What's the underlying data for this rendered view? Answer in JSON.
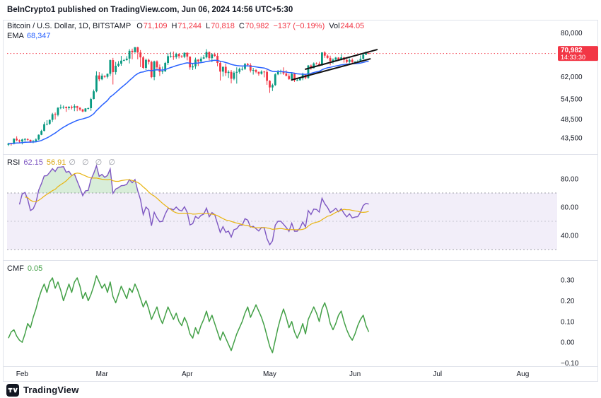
{
  "topbar": {
    "text": "BeInCrypto1 published on TradingView.com, Jun 06, 2024 14:56 UTC+5:30"
  },
  "footer": {
    "brand": "TradingView"
  },
  "legend": {
    "symbol": "Bitcoin / U.S. Dollar, 1D, BITSTAMP",
    "ohlc": [
      {
        "k": "O",
        "v": "71,109"
      },
      {
        "k": "H",
        "v": "71,244"
      },
      {
        "k": "L",
        "v": "70,818"
      },
      {
        "k": "C",
        "v": "70,982"
      }
    ],
    "change": "−137 (−0.19%)",
    "vol_label": "Vol",
    "vol_value": "244.05",
    "ema_label": "EMA",
    "ema_value": "68,347",
    "rsi_label": "RSI",
    "rsi_value": "62.15",
    "rsi_ma_value": "56.91",
    "rsi_hidden": "∅ ∅ ∅ ∅",
    "cmf_label": "CMF",
    "cmf_value": "0.05"
  },
  "colors": {
    "up": "#089981",
    "down": "#f23645",
    "ema": "#2962ff",
    "rsi": "#7e57c2",
    "rsi_ma": "#e8b410",
    "rsi_band": "rgba(126,87,194,0.10)",
    "rsi_ob": "rgba(76,175,80,0.22)",
    "cmf": "#43a047",
    "level": "#787b86",
    "trend": "#111111",
    "text": "#131722",
    "border": "#e0e3eb",
    "badge_text": "#ffffff"
  },
  "x_axis": {
    "slots": 200,
    "month_labels": [
      {
        "label": "Feb",
        "slot": 5
      },
      {
        "label": "Mar",
        "slot": 34
      },
      {
        "label": "Apr",
        "slot": 65
      },
      {
        "label": "May",
        "slot": 95
      },
      {
        "label": "Jun",
        "slot": 126
      },
      {
        "label": "Jul",
        "slot": 156
      },
      {
        "label": "Aug",
        "slot": 187
      }
    ]
  },
  "chart_data": [
    {
      "id": "price",
      "type": "candlestick",
      "title": "Bitcoin / U.S. Dollar, 1D, BITSTAMP",
      "scale": "log",
      "units": "USD, ohlc values in thousands",
      "x_start_date": "2024-01-27",
      "ylim": [
        39600,
        86300
      ],
      "y_ticks": [
        80000,
        62000,
        54500,
        48500,
        43500
      ],
      "y_tick_labels": [
        "80,000",
        "62,000",
        "54,500",
        "48,500",
        "43,500"
      ],
      "last": {
        "price": 70982,
        "label": "70,982",
        "countdown": "14:33:30"
      },
      "ema_period": 25,
      "trendlines": [
        {
          "x1": 108,
          "p1": 64800,
          "x2": 134,
          "p2": 72600
        },
        {
          "x1": 103,
          "p1": 60900,
          "x2": 131.5,
          "p2": 68800
        }
      ],
      "ohlc_k": [
        [
          41.8,
          42.3,
          41.5,
          42.1
        ],
        [
          42.1,
          42.3,
          41.6,
          42.0
        ],
        [
          42.0,
          43.4,
          41.9,
          43.3
        ],
        [
          43.3,
          43.9,
          42.7,
          42.9
        ],
        [
          42.9,
          43.1,
          42.2,
          42.6
        ],
        [
          42.6,
          43.3,
          41.9,
          43.1
        ],
        [
          43.1,
          43.5,
          42.6,
          43.2
        ],
        [
          43.2,
          43.4,
          42.8,
          43.0
        ],
        [
          43.0,
          43.1,
          42.3,
          42.6
        ],
        [
          42.6,
          43.0,
          42.2,
          42.7
        ],
        [
          42.7,
          43.4,
          42.5,
          43.1
        ],
        [
          43.1,
          44.4,
          42.9,
          44.3
        ],
        [
          44.3,
          45.6,
          44.2,
          45.3
        ],
        [
          45.3,
          47.7,
          45.2,
          47.1
        ],
        [
          47.1,
          48.2,
          46.8,
          47.2
        ],
        [
          47.2,
          48.4,
          46.9,
          48.3
        ],
        [
          48.3,
          50.3,
          47.7,
          49.9
        ],
        [
          49.9,
          50.4,
          48.4,
          49.7
        ],
        [
          49.7,
          52.0,
          49.3,
          51.8
        ],
        [
          51.8,
          52.8,
          51.4,
          51.9
        ],
        [
          51.9,
          52.5,
          51.5,
          52.1
        ],
        [
          52.1,
          52.2,
          50.6,
          51.7
        ],
        [
          51.7,
          52.3,
          51.2,
          52.1
        ],
        [
          52.1,
          52.5,
          51.3,
          51.8
        ],
        [
          51.8,
          52.9,
          50.8,
          52.3
        ],
        [
          52.3,
          52.4,
          50.8,
          51.8
        ],
        [
          51.8,
          52.0,
          50.9,
          51.3
        ],
        [
          51.3,
          51.5,
          50.5,
          50.7
        ],
        [
          50.7,
          51.7,
          50.6,
          51.6
        ],
        [
          51.6,
          51.9,
          51.3,
          51.7
        ],
        [
          51.7,
          54.9,
          50.9,
          54.5
        ],
        [
          54.5,
          57.6,
          54.4,
          57.0
        ],
        [
          57.0,
          64.0,
          56.7,
          62.5
        ],
        [
          62.5,
          63.7,
          60.4,
          61.1
        ],
        [
          61.1,
          63.2,
          60.8,
          62.4
        ],
        [
          62.4,
          62.5,
          61.6,
          62.0
        ],
        [
          62.0,
          63.2,
          61.4,
          63.1
        ],
        [
          63.1,
          68.5,
          62.3,
          68.3
        ],
        [
          68.3,
          69.2,
          59.3,
          63.7
        ],
        [
          63.7,
          67.6,
          62.8,
          66.1
        ],
        [
          66.1,
          67.9,
          65.6,
          66.9
        ],
        [
          66.9,
          70.0,
          66.1,
          68.1
        ],
        [
          68.1,
          68.8,
          67.9,
          68.3
        ],
        [
          68.3,
          69.9,
          68.1,
          68.9
        ],
        [
          68.9,
          72.8,
          67.0,
          72.1
        ],
        [
          72.1,
          73.0,
          68.6,
          71.5
        ],
        [
          71.5,
          73.7,
          71.3,
          73.6
        ],
        [
          73.6,
          73.8,
          68.6,
          71.4
        ],
        [
          71.4,
          72.4,
          65.6,
          69.4
        ],
        [
          69.4,
          70.0,
          64.9,
          65.3
        ],
        [
          65.3,
          68.9,
          64.5,
          68.4
        ],
        [
          68.4,
          68.9,
          66.6,
          67.6
        ],
        [
          67.6,
          68.1,
          61.5,
          61.9
        ],
        [
          61.9,
          68.1,
          60.8,
          67.8
        ],
        [
          67.8,
          68.2,
          64.6,
          65.5
        ],
        [
          65.5,
          66.6,
          62.3,
          63.8
        ],
        [
          63.8,
          65.8,
          63.0,
          64.0
        ],
        [
          64.0,
          67.6,
          63.8,
          67.2
        ],
        [
          67.2,
          71.1,
          66.4,
          69.9
        ],
        [
          69.9,
          71.6,
          69.3,
          69.9
        ],
        [
          69.9,
          71.8,
          68.4,
          69.5
        ],
        [
          69.5,
          71.3,
          68.8,
          70.8
        ],
        [
          70.8,
          71.0,
          69.0,
          69.9
        ],
        [
          69.9,
          70.3,
          69.2,
          69.6
        ],
        [
          69.6,
          71.4,
          69.1,
          71.3
        ],
        [
          71.3,
          71.4,
          68.2,
          69.7
        ],
        [
          69.7,
          69.8,
          64.6,
          65.5
        ],
        [
          65.5,
          66.9,
          64.5,
          65.9
        ],
        [
          65.9,
          69.3,
          64.9,
          68.5
        ],
        [
          68.5,
          68.7,
          66.0,
          67.8
        ],
        [
          67.8,
          69.7,
          67.5,
          68.9
        ],
        [
          68.9,
          70.3,
          68.7,
          69.4
        ],
        [
          69.4,
          72.8,
          69.0,
          71.6
        ],
        [
          71.6,
          71.8,
          68.2,
          69.1
        ],
        [
          69.1,
          71.1,
          67.5,
          70.6
        ],
        [
          70.6,
          71.3,
          69.6,
          70.0
        ],
        [
          70.0,
          71.2,
          65.9,
          67.2
        ],
        [
          67.2,
          67.9,
          60.7,
          63.9
        ],
        [
          63.9,
          65.8,
          62.1,
          65.7
        ],
        [
          65.7,
          66.9,
          62.3,
          63.4
        ],
        [
          63.4,
          64.4,
          61.6,
          63.8
        ],
        [
          63.8,
          64.5,
          59.7,
          61.3
        ],
        [
          61.3,
          64.1,
          60.8,
          63.5
        ],
        [
          63.5,
          65.5,
          59.6,
          63.8
        ],
        [
          63.8,
          65.4,
          63.1,
          64.9
        ],
        [
          64.9,
          65.7,
          64.3,
          64.9
        ],
        [
          64.9,
          67.2,
          64.5,
          66.8
        ],
        [
          66.8,
          67.2,
          65.8,
          66.4
        ],
        [
          66.4,
          67.1,
          63.6,
          64.3
        ],
        [
          64.3,
          65.3,
          62.8,
          64.5
        ],
        [
          64.5,
          64.8,
          63.3,
          63.8
        ],
        [
          63.8,
          63.9,
          62.4,
          63.1
        ],
        [
          63.1,
          64.4,
          62.8,
          63.9
        ],
        [
          63.9,
          64.2,
          61.8,
          63.8
        ],
        [
          63.8,
          64.7,
          59.2,
          60.6
        ],
        [
          60.6,
          60.8,
          56.5,
          58.3
        ],
        [
          58.3,
          59.6,
          57.1,
          59.1
        ],
        [
          59.1,
          63.3,
          58.8,
          62.9
        ],
        [
          62.9,
          64.5,
          62.6,
          64.0
        ],
        [
          64.0,
          64.6,
          62.9,
          64.0
        ],
        [
          64.0,
          65.5,
          62.7,
          63.2
        ],
        [
          63.2,
          64.4,
          62.3,
          62.3
        ],
        [
          62.3,
          63.0,
          60.9,
          61.2
        ],
        [
          61.2,
          63.4,
          60.6,
          63.1
        ],
        [
          63.1,
          63.5,
          60.2,
          60.8
        ],
        [
          60.8,
          61.5,
          60.5,
          60.8
        ],
        [
          60.8,
          61.9,
          60.6,
          61.5
        ],
        [
          61.5,
          63.5,
          60.8,
          62.9
        ],
        [
          62.9,
          63.1,
          61.1,
          61.6
        ],
        [
          61.6,
          66.4,
          61.3,
          66.2
        ],
        [
          66.2,
          66.6,
          64.6,
          65.2
        ],
        [
          65.2,
          67.4,
          65.1,
          67.0
        ],
        [
          67.0,
          67.4,
          66.6,
          66.9
        ],
        [
          66.9,
          67.7,
          65.9,
          66.3
        ],
        [
          66.3,
          71.5,
          66.1,
          71.4
        ],
        [
          71.4,
          71.9,
          69.2,
          70.1
        ],
        [
          70.1,
          70.6,
          68.8,
          69.2
        ],
        [
          69.2,
          70.1,
          66.3,
          67.9
        ],
        [
          67.9,
          69.0,
          66.9,
          68.5
        ],
        [
          68.5,
          69.6,
          68.2,
          69.3
        ],
        [
          69.3,
          69.5,
          68.2,
          68.5
        ],
        [
          68.5,
          70.7,
          68.2,
          69.4
        ],
        [
          69.4,
          69.6,
          67.3,
          68.4
        ],
        [
          68.4,
          68.7,
          67.1,
          67.6
        ],
        [
          67.6,
          69.0,
          67.1,
          68.4
        ],
        [
          68.4,
          69.0,
          66.7,
          67.5
        ],
        [
          67.5,
          67.9,
          67.3,
          67.7
        ],
        [
          67.7,
          68.4,
          67.2,
          67.8
        ],
        [
          67.8,
          70.2,
          67.6,
          68.8
        ],
        [
          68.8,
          71.0,
          68.6,
          70.5
        ],
        [
          70.5,
          71.8,
          70.3,
          71.1
        ],
        [
          71.1,
          71.24,
          70.82,
          70.98
        ]
      ]
    },
    {
      "id": "rsi",
      "type": "line",
      "name": "RSI",
      "period": 14,
      "ma_period": 14,
      "levels": [
        70,
        50,
        30
      ],
      "band": [
        30,
        70
      ],
      "ylim": [
        22.5,
        97.5
      ],
      "y_ticks": [
        80,
        60,
        40
      ],
      "y_tick_labels": [
        "80.00",
        "60.00",
        "40.00"
      ],
      "last_value": 62.15,
      "ma_last_value": 56.91
    },
    {
      "id": "cmf",
      "type": "line",
      "name": "CMF",
      "ylim": [
        -0.115,
        0.395
      ],
      "y_ticks": [
        0.3,
        0.2,
        0.1,
        0.0,
        -0.1
      ],
      "y_tick_labels": [
        "0.30",
        "0.20",
        "0.10",
        "0.00",
        "−0.10"
      ],
      "last_value": 0.05,
      "values": [
        0.02,
        0.05,
        0.06,
        0.03,
        0.01,
        0.0,
        0.04,
        0.09,
        0.07,
        0.12,
        0.16,
        0.21,
        0.25,
        0.28,
        0.24,
        0.29,
        0.31,
        0.26,
        0.29,
        0.25,
        0.2,
        0.24,
        0.28,
        0.24,
        0.29,
        0.31,
        0.27,
        0.21,
        0.24,
        0.2,
        0.23,
        0.27,
        0.32,
        0.29,
        0.26,
        0.28,
        0.24,
        0.29,
        0.22,
        0.19,
        0.23,
        0.27,
        0.24,
        0.21,
        0.26,
        0.24,
        0.28,
        0.25,
        0.21,
        0.17,
        0.2,
        0.16,
        0.11,
        0.14,
        0.17,
        0.12,
        0.09,
        0.13,
        0.17,
        0.14,
        0.11,
        0.14,
        0.1,
        0.08,
        0.12,
        0.09,
        0.04,
        0.02,
        0.07,
        0.04,
        0.08,
        0.11,
        0.15,
        0.1,
        0.13,
        0.09,
        0.05,
        0.01,
        0.05,
        0.02,
        -0.01,
        -0.04,
        0.0,
        0.04,
        0.07,
        0.1,
        0.14,
        0.17,
        0.12,
        0.15,
        0.18,
        0.15,
        0.12,
        0.08,
        0.03,
        -0.02,
        -0.05,
        0.01,
        0.07,
        0.12,
        0.16,
        0.12,
        0.07,
        0.1,
        0.05,
        0.02,
        0.05,
        0.09,
        0.04,
        0.11,
        0.14,
        0.17,
        0.14,
        0.1,
        0.16,
        0.19,
        0.15,
        0.09,
        0.06,
        0.09,
        0.13,
        0.15,
        0.1,
        0.06,
        0.03,
        0.01,
        0.04,
        0.08,
        0.11,
        0.13,
        0.08,
        0.05
      ]
    }
  ]
}
